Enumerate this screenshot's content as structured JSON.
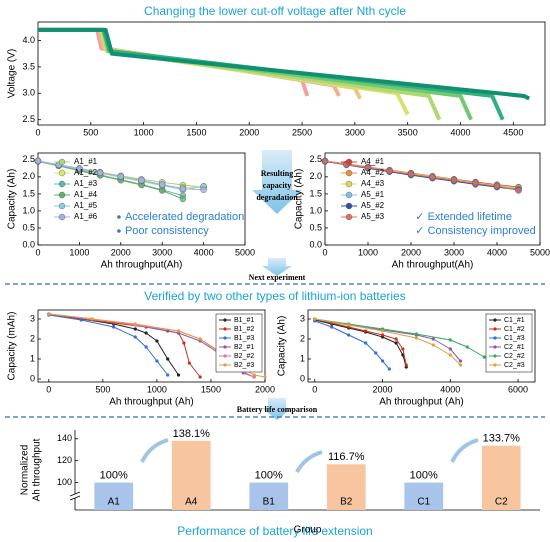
{
  "figure": {
    "title": "Changing the lower cut-off voltage after Nth cycle",
    "arrow_text": [
      "Resulting",
      "capacity",
      "degradation"
    ],
    "next_text": "Next experiment",
    "section2_title": "Verified by two other types of lithium-ion batteries",
    "compare_text": "Battery life comparison",
    "bottom_title": "Performance of battery life extension"
  },
  "chart_data": [
    {
      "type": "line",
      "ylabel": "Voltage (V)",
      "xlim": [
        0,
        4800
      ],
      "ylim": [
        2.4,
        4.35
      ],
      "xticks": [
        0,
        500,
        1000,
        1500,
        2000,
        2500,
        3000,
        3500,
        4000,
        4500
      ],
      "yticks": [
        2.5,
        {
          "value": 3,
          "label": "3.0"
        },
        3.5,
        {
          "value": 4,
          "label": "4.0"
        }
      ],
      "frame": true,
      "width": 4,
      "series": [
        {
          "color": "#f4a0a0",
          "x": [
            0,
            560,
            600,
            2500,
            2550
          ],
          "values": [
            4.2,
            4.2,
            3.85,
            3.25,
            2.95
          ]
        },
        {
          "color": "#f0b090",
          "x": [
            0,
            580,
            620,
            2800,
            2850
          ],
          "values": [
            4.2,
            4.2,
            3.85,
            3.15,
            2.95
          ]
        },
        {
          "color": "#e8c880",
          "x": [
            0,
            600,
            640,
            3000,
            3050
          ],
          "values": [
            4.2,
            4.2,
            3.85,
            3.1,
            2.9
          ]
        },
        {
          "color": "#d8e070",
          "x": [
            0,
            600,
            650,
            3400,
            3500
          ],
          "values": [
            4.2,
            4.2,
            3.8,
            3.0,
            2.6
          ]
        },
        {
          "color": "#b0d870",
          "x": [
            0,
            610,
            660,
            3700,
            3800
          ],
          "values": [
            4.2,
            4.2,
            3.8,
            2.95,
            2.5
          ]
        },
        {
          "color": "#70c870",
          "x": [
            0,
            620,
            670,
            4000,
            4100
          ],
          "values": [
            4.2,
            4.2,
            3.8,
            2.95,
            2.5
          ]
        },
        {
          "color": "#30b080",
          "x": [
            0,
            620,
            680,
            4300,
            4400
          ],
          "values": [
            4.2,
            4.2,
            3.8,
            2.95,
            2.5
          ]
        },
        {
          "color": "#109070",
          "x": [
            0,
            640,
            700,
            4600,
            4650
          ],
          "values": [
            4.2,
            4.2,
            3.75,
            2.95,
            2.9
          ]
        }
      ]
    },
    {
      "type": "line",
      "xlabel": "Ah throughput(Ah)",
      "ylabel": "Capacity (Ah)",
      "xlim": [
        0,
        5000
      ],
      "ylim": [
        0,
        2.7
      ],
      "xticks": [
        0,
        1000,
        2000,
        3000,
        4000,
        5000
      ],
      "yticks": [
        {
          "value": 0,
          "label": "0.0"
        },
        0.5,
        {
          "value": 1,
          "label": "1.0"
        },
        1.5,
        {
          "value": 2,
          "label": "2.0"
        },
        2.5
      ],
      "frame": true,
      "markers": true,
      "legend": "upper left",
      "annotations": [
        "Accelerated degradation",
        "Poor consistency"
      ],
      "annotation_marker": "bullet",
      "x": [
        0,
        500,
        1000,
        1500,
        2000,
        2500,
        3000,
        3500,
        4000
      ],
      "series": [
        {
          "name": "A1_#1",
          "color": "#a8d870",
          "values": [
            2.47,
            2.36,
            2.25,
            2.14,
            2.03,
            1.93,
            1.84,
            1.76,
            1.7
          ]
        },
        {
          "name": "A1_#2",
          "color": "#d9e86a",
          "values": [
            2.46,
            2.34,
            2.22,
            2.1,
            1.98,
            1.86,
            1.74,
            1.68,
            1.72
          ]
        },
        {
          "name": "A1_#3",
          "color": "#5fb8a8",
          "values": [
            2.47,
            2.33,
            2.2,
            2.06,
            1.92,
            1.78,
            1.62,
            1.45,
            null
          ]
        },
        {
          "name": "A1_#4",
          "color": "#62b06a",
          "values": [
            2.45,
            2.32,
            2.18,
            2.04,
            1.9,
            1.76,
            1.6,
            1.35,
            null
          ]
        },
        {
          "name": "A1_#5",
          "color": "#8cc8e0",
          "values": [
            2.46,
            2.35,
            2.23,
            2.12,
            2.0,
            1.88,
            1.75,
            1.62,
            1.72
          ]
        },
        {
          "name": "A1_#6",
          "color": "#a6b0e8",
          "values": [
            2.47,
            2.35,
            2.24,
            2.12,
            2.01,
            1.9,
            1.78,
            1.65,
            1.62
          ]
        }
      ]
    },
    {
      "type": "line",
      "xlabel": "Ah throughput(Ah)",
      "ylabel": "Capacity (Ah)",
      "xlim": [
        0,
        5000
      ],
      "ylim": [
        0,
        2.7
      ],
      "xticks": [
        0,
        1000,
        2000,
        3000,
        4000,
        5000
      ],
      "yticks": [
        {
          "value": 0,
          "label": "0.0"
        },
        0.5,
        {
          "value": 1,
          "label": "1.0"
        },
        1.5,
        {
          "value": 2,
          "label": "2.0"
        },
        2.5
      ],
      "frame": true,
      "markers": true,
      "legend": "upper left",
      "annotations": [
        "✓ Extended lifetime",
        "✓ Consistency improved"
      ],
      "x": [
        0,
        500,
        1000,
        1500,
        2000,
        2500,
        3000,
        3500,
        4000,
        4500
      ],
      "series": [
        {
          "name": "A4_#1",
          "color": "#d04030",
          "values": [
            2.47,
            2.38,
            2.29,
            2.2,
            2.11,
            2.02,
            1.93,
            1.85,
            1.77,
            1.7
          ]
        },
        {
          "name": "A4_#2",
          "color": "#e89040",
          "values": [
            2.46,
            2.37,
            2.27,
            2.18,
            2.09,
            2.0,
            1.91,
            1.82,
            1.74,
            1.66
          ]
        },
        {
          "name": "A4_#3",
          "color": "#e8d060",
          "values": [
            2.47,
            2.37,
            2.28,
            2.19,
            2.1,
            2.01,
            1.92,
            1.83,
            1.75,
            1.68
          ]
        },
        {
          "name": "A5_#1",
          "color": "#80c0e8",
          "values": [
            2.46,
            2.36,
            2.26,
            2.16,
            2.07,
            1.98,
            1.89,
            1.8,
            1.72,
            1.64
          ]
        },
        {
          "name": "A5_#2",
          "color": "#3050a0",
          "values": [
            2.45,
            2.35,
            2.25,
            2.15,
            2.05,
            1.96,
            1.87,
            1.78,
            1.7,
            1.62
          ]
        },
        {
          "name": "A5_#3",
          "color": "#e07060",
          "values": [
            2.46,
            2.36,
            2.27,
            2.17,
            2.08,
            1.99,
            1.9,
            1.81,
            1.73,
            1.6
          ]
        }
      ]
    },
    {
      "type": "line",
      "xlabel": "Ah throughput (Ah)",
      "ylabel": "Capacity (mAh)",
      "xlim": [
        -100,
        2000
      ],
      "ylim": [
        -0.15,
        3.45
      ],
      "xticks": [
        0,
        500,
        1000,
        1500,
        2000
      ],
      "yticks": [
        0,
        1,
        2,
        3
      ],
      "frame": true,
      "markers": true,
      "small": true,
      "legend": "upper right",
      "series": [
        {
          "name": "B1_#1",
          "color": "#222222",
          "x": [
            0,
            300,
            600,
            800,
            900,
            1000,
            1100,
            1200
          ],
          "values": [
            3.25,
            3.0,
            2.75,
            2.5,
            2.3,
            1.9,
            1.0,
            0.2
          ]
        },
        {
          "name": "B1_#2",
          "color": "#c83020",
          "x": [
            0,
            300,
            600,
            900,
            1100,
            1200,
            1250,
            1300,
            1400
          ],
          "values": [
            3.25,
            3.0,
            2.8,
            2.6,
            2.4,
            2.3,
            1.8,
            0.8,
            0.1
          ]
        },
        {
          "name": "B1_#3",
          "color": "#2f6fe0",
          "x": [
            0,
            300,
            600,
            800,
            900,
            1000,
            1100
          ],
          "values": [
            3.2,
            2.95,
            2.6,
            2.1,
            1.6,
            0.9,
            0.2
          ]
        },
        {
          "name": "B2_#1",
          "color": "#8a5ab0",
          "x": [
            0,
            400,
            800,
            1200,
            1400,
            1600,
            1700,
            1800,
            1900
          ],
          "values": [
            3.25,
            3.0,
            2.7,
            2.3,
            1.9,
            1.2,
            0.7,
            0.3,
            0.1
          ]
        },
        {
          "name": "B2_#2",
          "color": "#e070b0",
          "x": [
            0,
            400,
            800,
            1200,
            1400,
            1600,
            1700,
            1800,
            1900
          ],
          "values": [
            3.25,
            3.0,
            2.7,
            2.4,
            2.0,
            1.3,
            0.8,
            0.35,
            0.1
          ]
        },
        {
          "name": "B2_#3",
          "color": "#e0a040",
          "x": [
            0,
            400,
            800,
            1200,
            1400,
            1600,
            1800,
            1900,
            2000
          ],
          "values": [
            3.25,
            3.0,
            2.75,
            2.4,
            2.0,
            1.2,
            0.5,
            0.2,
            0.1
          ]
        }
      ]
    },
    {
      "type": "line",
      "xlabel": "Ah throughput (Ah)",
      "ylabel": "Capacity (Ah)",
      "xlim": [
        -200,
        6500
      ],
      "ylim": [
        -0.15,
        3.45
      ],
      "xticks": [
        0,
        2000,
        4000,
        6000
      ],
      "yticks": [
        0,
        1,
        2,
        3
      ],
      "frame": true,
      "markers": true,
      "small": true,
      "legend": "upper right",
      "series": [
        {
          "name": "C1_#1",
          "color": "#222222",
          "x": [
            0,
            500,
            1000,
            1500,
            2000,
            2400,
            2600,
            2700
          ],
          "values": [
            2.95,
            2.75,
            2.55,
            2.35,
            2.1,
            1.8,
            1.2,
            0.6
          ]
        },
        {
          "name": "C1_#2",
          "color": "#c83020",
          "x": [
            0,
            500,
            1000,
            1500,
            2000,
            2400,
            2600,
            2700
          ],
          "values": [
            3.0,
            2.8,
            2.6,
            2.4,
            2.2,
            2.0,
            1.5,
            0.7
          ]
        },
        {
          "name": "C1_#3",
          "color": "#2f6fe0",
          "x": [
            0,
            500,
            1000,
            1500,
            1800,
            2000,
            2200
          ],
          "values": [
            2.9,
            2.6,
            2.2,
            1.8,
            1.3,
            0.9,
            0.5
          ]
        },
        {
          "name": "C2_#1",
          "color": "#8a5ab0",
          "x": [
            0,
            1000,
            2000,
            3000,
            3500,
            4000,
            4300
          ],
          "values": [
            3.0,
            2.7,
            2.45,
            2.2,
            2.0,
            1.5,
            0.9
          ]
        },
        {
          "name": "C2_#2",
          "color": "#3aa860",
          "x": [
            0,
            1000,
            2000,
            3000,
            4000,
            4500,
            5000,
            5500
          ],
          "values": [
            3.0,
            2.75,
            2.5,
            2.25,
            1.95,
            1.6,
            1.1,
            0.5
          ]
        },
        {
          "name": "C2_#3",
          "color": "#e0a040",
          "x": [
            0,
            1000,
            2000,
            3000,
            3500,
            4000,
            4300
          ],
          "values": [
            3.0,
            2.7,
            2.4,
            2.05,
            1.7,
            1.2,
            0.7
          ]
        }
      ]
    },
    {
      "type": "bar",
      "xlabel": "Group",
      "ylabel": [
        "Normalized",
        "Ah throughput"
      ],
      "ylim": [
        75,
        148
      ],
      "yticks": [
        100,
        120,
        140
      ],
      "axis_break": true,
      "categories": [
        "A1",
        "A4",
        "B1",
        "B2",
        "C1",
        "C2"
      ],
      "values": [
        100,
        138.1,
        100,
        116.7,
        100,
        133.7
      ],
      "value_labels": [
        "100%",
        "138.1%",
        "100%",
        "116.7%",
        "100%",
        "133.7%"
      ],
      "colors": [
        "#a9c4eb",
        "#f7c59f",
        "#a9c4eb",
        "#f7c59f",
        "#a9c4eb",
        "#f7c59f"
      ]
    }
  ]
}
